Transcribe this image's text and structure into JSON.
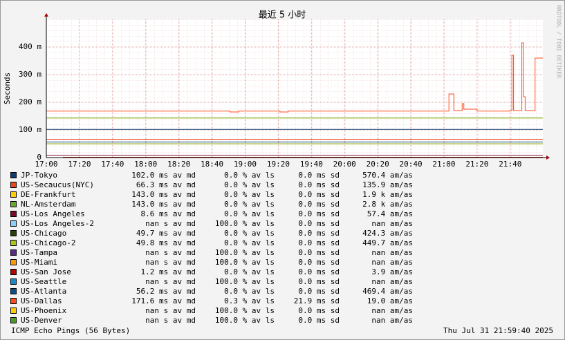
{
  "chart_data": {
    "type": "line",
    "title": "最近 5 小时",
    "y_label": "Seconds",
    "side_text": "RRDTOOL / TOBI OETIKER",
    "footer_left": "ICMP Echo Pings (56 Bytes)",
    "footer_right": "Thu Jul 31 21:59:40 2025",
    "grid": true,
    "xlim": [
      1020,
      1319.7
    ],
    "ylim": [
      0,
      0.5
    ],
    "xticks": [
      {
        "value": 1020,
        "label": "17:00"
      },
      {
        "value": 1040,
        "label": "17:20"
      },
      {
        "value": 1060,
        "label": "17:40"
      },
      {
        "value": 1080,
        "label": "18:00"
      },
      {
        "value": 1100,
        "label": "18:20"
      },
      {
        "value": 1120,
        "label": "18:40"
      },
      {
        "value": 1140,
        "label": "19:00"
      },
      {
        "value": 1160,
        "label": "19:20"
      },
      {
        "value": 1180,
        "label": "19:40"
      },
      {
        "value": 1200,
        "label": "20:00"
      },
      {
        "value": 1220,
        "label": "20:20"
      },
      {
        "value": 1240,
        "label": "20:40"
      },
      {
        "value": 1260,
        "label": "21:00"
      },
      {
        "value": 1280,
        "label": "21:20"
      },
      {
        "value": 1300,
        "label": "21:40"
      }
    ],
    "yticks": [
      0,
      {
        "value": 0.1,
        "label": "100 m"
      },
      {
        "value": 0.2,
        "label": "200 m"
      },
      {
        "value": 0.3,
        "label": "300 m"
      },
      {
        "value": 0.4,
        "label": "400 m"
      }
    ],
    "series": [
      {
        "name": "JP-Tokyo",
        "color": "#0d3d73",
        "x": [
          1020,
          1319.7
        ],
        "values": [
          0.102,
          0.102
        ],
        "stats": [
          "102.0 ms av md",
          "0.0 % av ls",
          "0.0 ms sd",
          "570.4 am/as"
        ]
      },
      {
        "name": "US-Secaucus(NYC)",
        "color": "#e8481c",
        "x": [
          1020,
          1319.7
        ],
        "values": [
          0.0663,
          0.0663
        ],
        "stats": [
          "66.3 ms av md",
          "0.0 % av ls",
          "0.0 ms sd",
          "135.9 am/as"
        ]
      },
      {
        "name": "DE-Frankfurt",
        "color": "#ffcc00",
        "x": [
          1020,
          1319.7
        ],
        "values": [
          0.143,
          0.143
        ],
        "stats": [
          "143.0 ms av md",
          "0.0 % av ls",
          "0.0 ms sd",
          "1.9 k am/as"
        ]
      },
      {
        "name": "NL-Amsterdam",
        "color": "#69a82b",
        "x": [
          1020,
          1319.7
        ],
        "values": [
          0.143,
          0.143
        ],
        "stats": [
          "143.0 ms av md",
          "0.0 % av ls",
          "0.0 ms sd",
          "2.8 k am/as"
        ]
      },
      {
        "name": "US-Los Angeles",
        "color": "#7a0a2a",
        "x": [
          1020,
          1319.7
        ],
        "values": [
          0.0086,
          0.0086
        ],
        "stats": [
          "8.6 ms av md",
          "0.0 % av ls",
          "0.0 ms sd",
          "57.4 am/as"
        ]
      },
      {
        "name": "US-Los Angeles-2",
        "color": "#8ccfff",
        "x": [
          1020,
          1319.7
        ],
        "values": [
          null,
          null
        ],
        "stats": [
          "nan s av md",
          "100.0 % av ls",
          "0.0 ms sd",
          "nan am/as"
        ]
      },
      {
        "name": "US-Chicago",
        "color": "#2d3f08",
        "x": [
          1020,
          1319.7
        ],
        "values": [
          0.0497,
          0.0497
        ],
        "stats": [
          "49.7 ms av md",
          "0.0 % av ls",
          "0.0 ms sd",
          "424.3 am/as"
        ]
      },
      {
        "name": "US-Chicago-2",
        "color": "#a8c818",
        "x": [
          1020,
          1319.7
        ],
        "values": [
          0.0498,
          0.0498
        ],
        "stats": [
          "49.8 ms av md",
          "0.0 % av ls",
          "0.0 ms sd",
          "449.7 am/as"
        ]
      },
      {
        "name": "US-Tampa",
        "color": "#5b2a86",
        "x": [
          1020,
          1319.7
        ],
        "values": [
          null,
          null
        ],
        "stats": [
          "nan s av md",
          "100.0 % av ls",
          "0.0 ms sd",
          "nan am/as"
        ]
      },
      {
        "name": "US-Miami",
        "color": "#ff9900",
        "x": [
          1020,
          1319.7
        ],
        "values": [
          null,
          null
        ],
        "stats": [
          "nan s av md",
          "100.0 % av ls",
          "0.0 ms sd",
          "nan am/as"
        ]
      },
      {
        "name": "US-San Jose",
        "color": "#b30000",
        "x": [
          1030,
          1319.7
        ],
        "values": [
          0.0012,
          0.0012
        ],
        "stats": [
          "1.2 ms av md",
          "0.0 % av ls",
          "0.0 ms sd",
          "3.9 am/as"
        ]
      },
      {
        "name": "US-Seattle",
        "color": "#1a88cc",
        "x": [
          1020,
          1319.7
        ],
        "values": [
          null,
          null
        ],
        "stats": [
          "nan s av md",
          "100.0 % av ls",
          "0.0 ms sd",
          "nan am/as"
        ]
      },
      {
        "name": "US-Atlanta",
        "color": "#0a4f8a",
        "x": [
          1020,
          1319.7
        ],
        "values": [
          0.0562,
          0.0562
        ],
        "stats": [
          "56.2 ms av md",
          "0.0 % av ls",
          "0.0 ms sd",
          "469.4 am/as"
        ]
      },
      {
        "name": "US-Dallas",
        "color": "#ff4a1a",
        "x": [
          1020,
          1130,
          1131,
          1135,
          1136,
          1160,
          1161,
          1165,
          1166,
          1262,
          1263,
          1265,
          1266,
          1270,
          1271,
          1272,
          1275,
          1280,
          1300,
          1301,
          1302,
          1305,
          1307,
          1308,
          1309,
          1314,
          1315,
          1319.7
        ],
        "values": [
          0.168,
          0.168,
          0.165,
          0.165,
          0.168,
          0.168,
          0.165,
          0.165,
          0.168,
          0.168,
          0.23,
          0.23,
          0.17,
          0.17,
          0.195,
          0.175,
          0.175,
          0.168,
          0.17,
          0.37,
          0.17,
          0.17,
          0.415,
          0.22,
          0.17,
          0.17,
          0.36,
          0.36
        ],
        "stats": [
          "171.6 ms av md",
          "0.3 % av ls",
          "21.9 ms sd",
          "19.0 am/as"
        ]
      },
      {
        "name": "US-Phoenix",
        "color": "#ffcc00",
        "x": [
          1020,
          1319.7
        ],
        "values": [
          null,
          null
        ],
        "stats": [
          "nan s av md",
          "100.0 % av ls",
          "0.0 ms sd",
          "nan am/as"
        ]
      },
      {
        "name": "US-Denver",
        "color": "#4a9a28",
        "x": [
          1020,
          1319.7
        ],
        "values": [
          null,
          null
        ],
        "stats": [
          "nan s av md",
          "100.0 % av ls",
          "0.0 ms sd",
          "nan am/as"
        ]
      }
    ]
  }
}
